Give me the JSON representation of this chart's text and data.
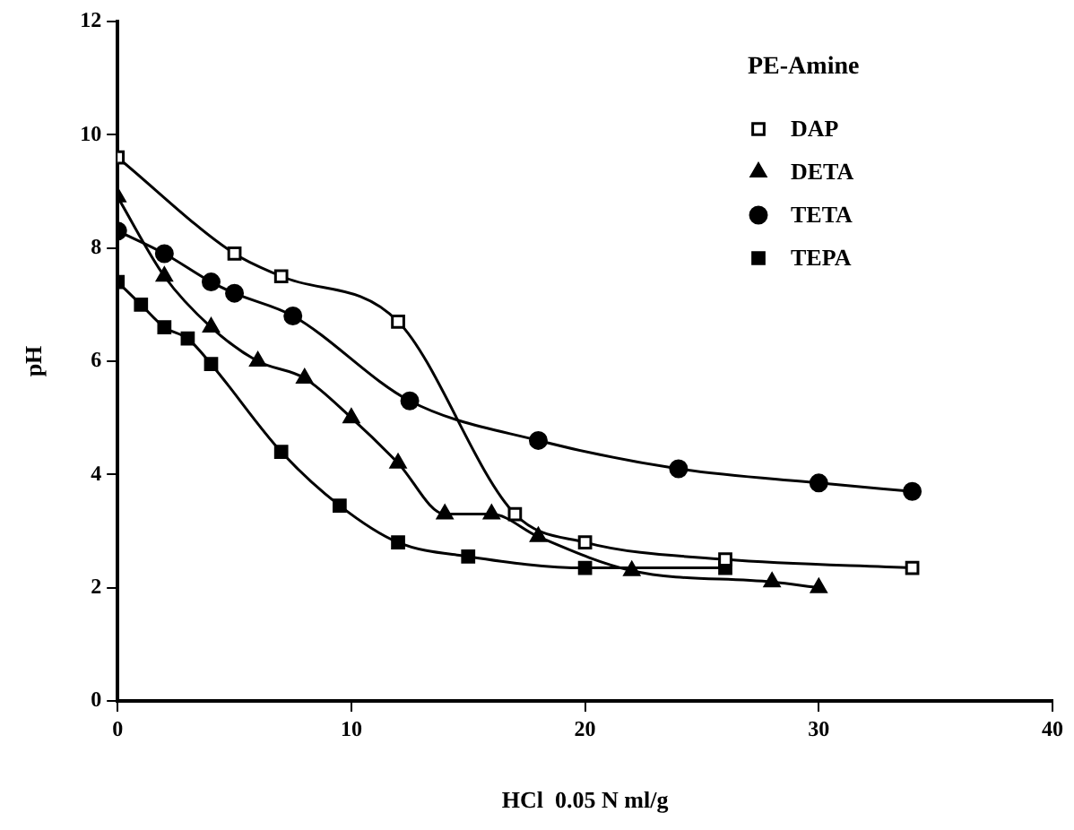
{
  "chart_data": {
    "type": "line",
    "xlabel": "HCl  0.05 N ml/g",
    "ylabel": "pH",
    "legend_title": "PE-Amine",
    "legend": "top right",
    "grid": false,
    "line_style": "solid",
    "xlim": [
      0,
      40
    ],
    "xticks": [
      0,
      10,
      20,
      30,
      40
    ],
    "ylim": [
      0,
      12
    ],
    "yticks": [
      0,
      2,
      4,
      6,
      8,
      10,
      12
    ],
    "series": [
      {
        "name": "DAP",
        "color": "#000000",
        "marker": "square-open",
        "x": [
          0,
          5,
          7,
          12,
          17,
          20,
          26,
          34
        ],
        "values": [
          9.6,
          7.9,
          7.5,
          6.7,
          3.3,
          2.8,
          2.5,
          2.35
        ]
      },
      {
        "name": "DETA",
        "color": "#000000",
        "marker": "triangle",
        "x": [
          0,
          2,
          4,
          6,
          8,
          10,
          12,
          14,
          16,
          18,
          22,
          28,
          30
        ],
        "values": [
          8.9,
          7.5,
          6.6,
          6.0,
          5.7,
          5.0,
          4.2,
          3.3,
          3.3,
          2.9,
          2.3,
          2.1,
          2.0
        ]
      },
      {
        "name": "TETA",
        "color": "#000000",
        "marker": "circle",
        "x": [
          0,
          2,
          4,
          5,
          7.5,
          12.5,
          18,
          24,
          30,
          34
        ],
        "values": [
          8.3,
          7.9,
          7.4,
          7.2,
          6.8,
          5.3,
          4.6,
          4.1,
          3.85,
          3.7
        ]
      },
      {
        "name": "TEPA",
        "color": "#000000",
        "marker": "square",
        "x": [
          0,
          1,
          2,
          3,
          4,
          7,
          9.5,
          12,
          15,
          20,
          26
        ],
        "values": [
          7.4,
          7.0,
          6.6,
          6.4,
          5.95,
          4.4,
          3.45,
          2.8,
          2.55,
          2.35,
          2.35
        ]
      }
    ]
  }
}
